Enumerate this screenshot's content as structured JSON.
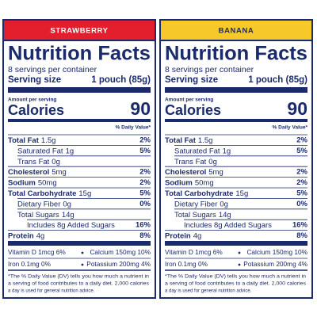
{
  "labels": [
    {
      "flavor": "STRAWBERRY",
      "title": "Nutrition Facts",
      "servings": "8 servings per container",
      "serving_size_label": "Serving size",
      "serving_size": "1 pouch (85g)",
      "amount_per_serving": "Amount per serving",
      "calories_label": "Calories",
      "calories": "90",
      "daily_value_header": "% Daily Value*",
      "nutrients": [
        {
          "name": "Total Fat",
          "amount": "1.5g",
          "dv": "2%"
        },
        {
          "name": "Saturated Fat",
          "amount": "1g",
          "dv": "5%"
        },
        {
          "name": "Trans Fat",
          "amount": "0g"
        },
        {
          "name": "Cholesterol",
          "amount": "5mg",
          "dv": "2%"
        },
        {
          "name": "Sodium",
          "amount": "50mg",
          "dv": "2%"
        },
        {
          "name": "Total Carbohydrate",
          "amount": "15g",
          "dv": "5%"
        },
        {
          "name": "Dietary Fiber",
          "amount": "0g",
          "dv": "0%"
        },
        {
          "name": "Total Sugars",
          "amount": "14g"
        },
        {
          "name": "Includes 8g Added Sugars",
          "dv": "16%"
        },
        {
          "name": "Protein",
          "amount": "4g",
          "dv": "8%"
        }
      ],
      "vitamins": [
        [
          "Vitamin D 1mcg 6%",
          "Calcium 150mg 10%"
        ],
        [
          "Iron 0.1mg 0%",
          "Potassium 200mg 4%"
        ]
      ],
      "footnote": [
        "*The % Daily Value (DV) tells you how much a nutrient in",
        "a serving of food contributes to a daily diet. 2,000 calories",
        "a day is used for general nutrition advice."
      ]
    },
    {
      "flavor": "BANANA",
      "title": "Nutrition Facts",
      "servings": "8 servings per container",
      "serving_size_label": "Serving size",
      "serving_size": "1 pouch (85g)",
      "amount_per_serving": "Amount per serving",
      "calories_label": "Calories",
      "calories": "90",
      "daily_value_header": "% Daily Value*",
      "nutrients": [
        {
          "name": "Total Fat",
          "amount": "1.5g",
          "dv": "2%"
        },
        {
          "name": "Saturated Fat",
          "amount": "1g",
          "dv": "5%"
        },
        {
          "name": "Trans Fat",
          "amount": "0g"
        },
        {
          "name": "Cholesterol",
          "amount": "5mg",
          "dv": "2%"
        },
        {
          "name": "Sodium",
          "amount": "50mg",
          "dv": "2%"
        },
        {
          "name": "Total Carbohydrate",
          "amount": "15g",
          "dv": "5%"
        },
        {
          "name": "Dietary Fiber",
          "amount": "0g",
          "dv": "0%"
        },
        {
          "name": "Total Sugars",
          "amount": "14g"
        },
        {
          "name": "Includes 8g Added Sugars",
          "dv": "16%"
        },
        {
          "name": "Protein",
          "amount": "4g",
          "dv": "8%"
        }
      ],
      "vitamins": [
        [
          "Vitamin D 1mcg 6%",
          "Calcium 150mg 10%"
        ],
        [
          "Iron 0.1mg 0%",
          "Potassium 200mg 4%"
        ]
      ],
      "footnote": [
        "*The % Daily Value (DV) tells you how much a nutrient in",
        "a serving of food contributes to a daily diet. 2,000 calories",
        "a day is used for general nutrition advice."
      ]
    }
  ]
}
